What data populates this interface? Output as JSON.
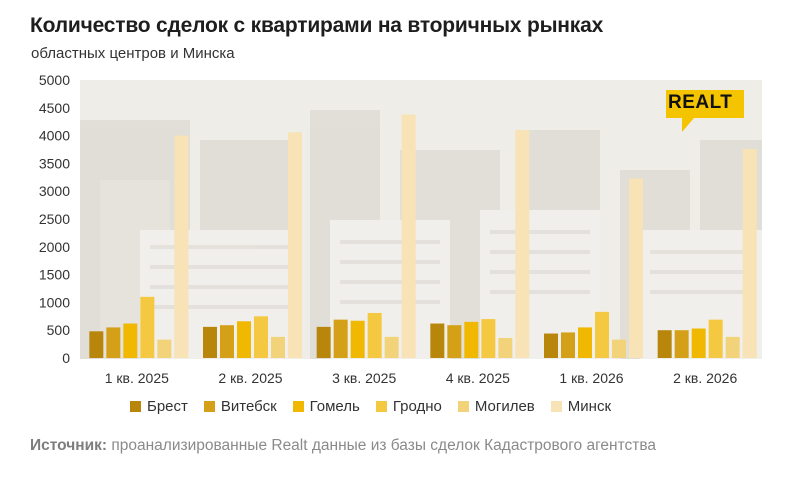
{
  "header": {
    "title": "Количество сделок с квартирами на вторичных рынках",
    "subtitle": "областных центров и Минска"
  },
  "logo": {
    "text": "REALT",
    "color": "#f5c400"
  },
  "source": {
    "label": "Источник:",
    "text": "проанализированные Realt данные из базы сделок Кадастрового агентства"
  },
  "chart_data": {
    "type": "bar",
    "title": "Количество сделок с квартирами на вторичных рынках",
    "subtitle": "областных центров и Минска",
    "categories": [
      "1 кв. 2025",
      "2 кв. 2025",
      "3 кв. 2025",
      "4 кв. 2025",
      "1 кв. 2026",
      "2 кв. 2026"
    ],
    "yticks": [
      "0",
      "500",
      "1000",
      "1500",
      "2000",
      "2500",
      "3000",
      "3500",
      "4000",
      "4500",
      "5000"
    ],
    "ylim": [
      0,
      5000
    ],
    "grid": false,
    "legend_position": "bottom",
    "series": [
      {
        "name": "Брест",
        "color": "#b8860b",
        "values": [
          480,
          560,
          560,
          620,
          440,
          500
        ]
      },
      {
        "name": "Витебск",
        "color": "#d4a017",
        "values": [
          550,
          590,
          690,
          590,
          460,
          500
        ]
      },
      {
        "name": "Гомель",
        "color": "#f0b800",
        "values": [
          620,
          660,
          670,
          650,
          550,
          530
        ]
      },
      {
        "name": "Гродно",
        "color": "#f5c842",
        "values": [
          1100,
          750,
          810,
          700,
          830,
          690
        ]
      },
      {
        "name": "Могилев",
        "color": "#f2d37a",
        "values": [
          330,
          380,
          380,
          360,
          330,
          380
        ]
      },
      {
        "name": "Минск",
        "color": "#f7e3b5",
        "values": [
          4000,
          4060,
          4380,
          4100,
          3230,
          3760
        ]
      }
    ]
  }
}
